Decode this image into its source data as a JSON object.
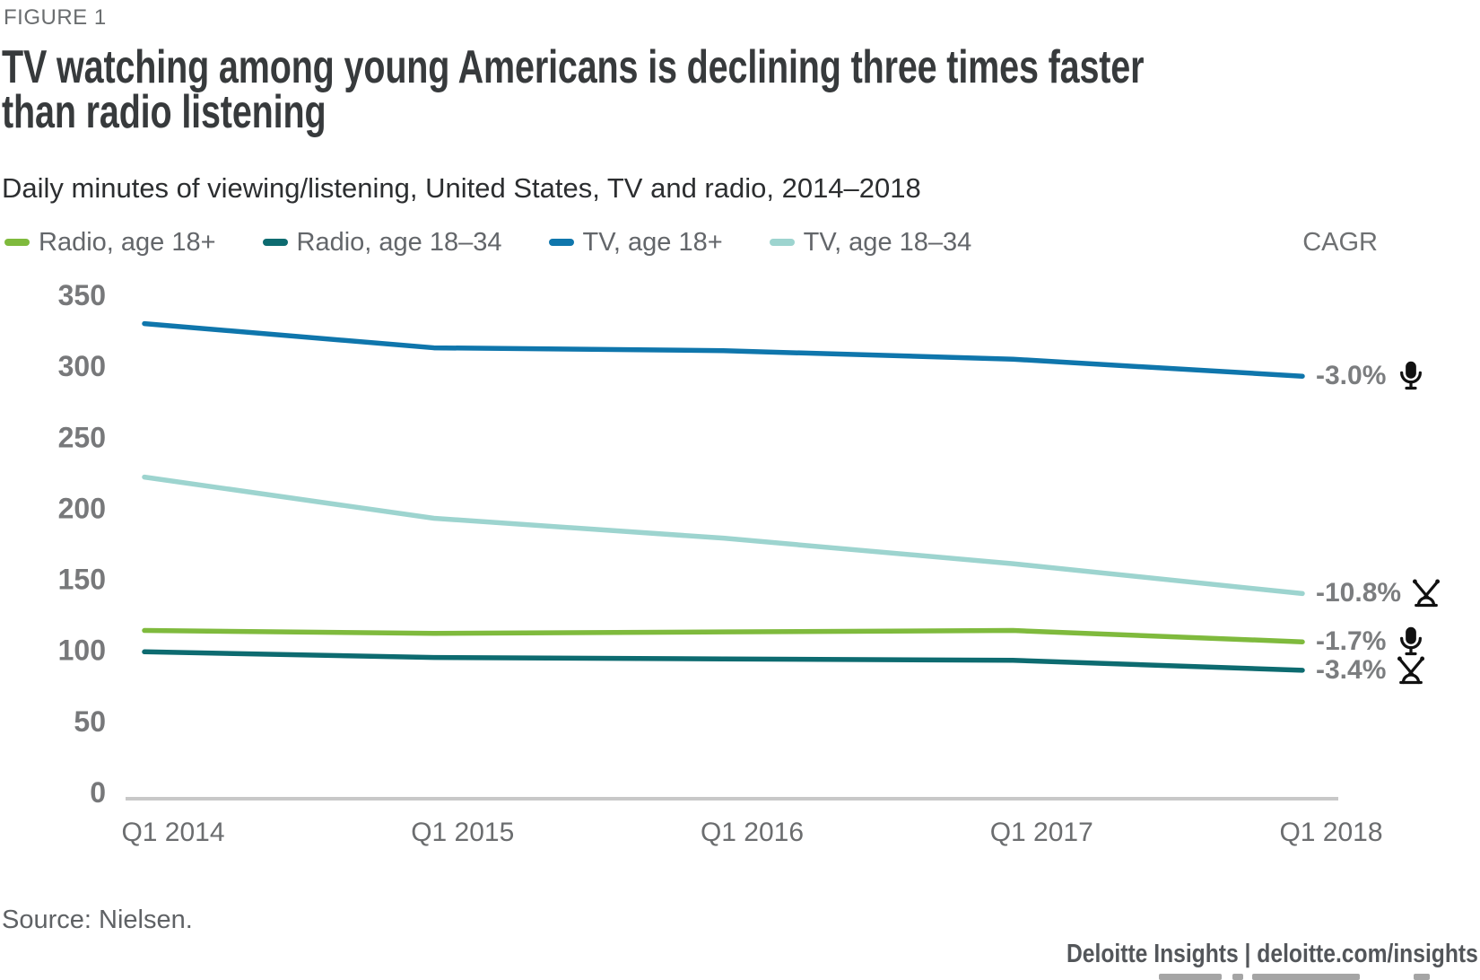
{
  "figure_label": "FIGURE 1",
  "title": "TV watching among young Americans is declining three times faster\nthan radio listening",
  "subtitle": "Daily minutes of viewing/listening, United States, TV and radio, 2014–2018",
  "cagr_header": "CAGR",
  "source_note": "Source: Nielsen.",
  "footer_branding": "Deloitte Insights | deloitte.com/insights",
  "chart_data": {
    "type": "line",
    "title": "TV watching among young Americans is declining three times faster than radio listening",
    "subtitle": "Daily minutes of viewing/listening, United States, TV and radio, 2014–2018",
    "ylabel": "Daily minutes of viewing/listening",
    "xlabel": "",
    "categories": [
      "Q1 2014",
      "Q1 2015",
      "Q1 2016",
      "Q1 2017",
      "Q1 2018"
    ],
    "ylim": [
      0,
      350
    ],
    "yticks": [
      0,
      50,
      100,
      150,
      200,
      250,
      300,
      350
    ],
    "grid": false,
    "legend_position": "top",
    "annotation_header": "CAGR",
    "series": [
      {
        "name": "Radio, age 18+",
        "color": "#7fba3d",
        "values": [
          114,
          112,
          113,
          114,
          106
        ],
        "cagr_label": "-1.7%",
        "icon": "microphone"
      },
      {
        "name": "Radio, age 18–34",
        "color": "#0d6b70",
        "values": [
          99,
          95,
          94,
          93,
          86
        ],
        "cagr_label": "-3.4%",
        "icon": "antenna"
      },
      {
        "name": "TV, age 18+",
        "color": "#0f76ac",
        "values": [
          330,
          313,
          311,
          305,
          293
        ],
        "cagr_label": "-3.0%",
        "icon": "microphone"
      },
      {
        "name": "TV, age 18–34",
        "color": "#9dd4cf",
        "values": [
          222,
          193,
          179,
          161,
          140
        ],
        "cagr_label": "-10.8%",
        "icon": "antenna"
      }
    ]
  }
}
